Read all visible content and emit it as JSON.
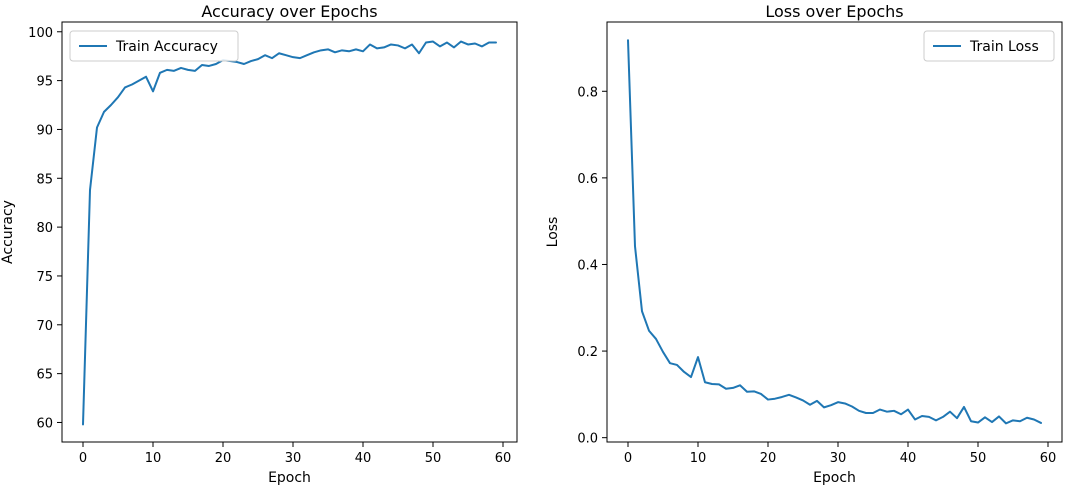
{
  "chart_data": [
    {
      "type": "line",
      "title": "Accuracy over Epochs",
      "xlabel": "Epoch",
      "ylabel": "Accuracy",
      "xlim": [
        -3,
        62
      ],
      "ylim": [
        58.0,
        101.0
      ],
      "xticks": [
        0,
        10,
        20,
        30,
        40,
        50,
        60
      ],
      "yticks": [
        60,
        65,
        70,
        75,
        80,
        85,
        90,
        95,
        100
      ],
      "grid": false,
      "legend_position": "upper-left",
      "series": [
        {
          "name": "Train Accuracy",
          "color": "#1f77b4",
          "x": [
            0,
            1,
            2,
            3,
            4,
            5,
            6,
            7,
            8,
            9,
            10,
            11,
            12,
            13,
            14,
            15,
            16,
            17,
            18,
            19,
            20,
            21,
            22,
            23,
            24,
            25,
            26,
            27,
            28,
            29,
            30,
            31,
            32,
            33,
            34,
            35,
            36,
            37,
            38,
            39,
            40,
            41,
            42,
            43,
            44,
            45,
            46,
            47,
            48,
            49,
            50,
            51,
            52,
            53,
            54,
            55,
            56,
            57,
            58,
            59
          ],
          "y": [
            59.8,
            83.8,
            90.2,
            91.8,
            92.5,
            93.3,
            94.3,
            94.6,
            95.0,
            95.4,
            93.9,
            95.8,
            96.1,
            96.0,
            96.3,
            96.1,
            96.0,
            96.6,
            96.5,
            96.7,
            97.1,
            97.0,
            96.9,
            96.7,
            97.0,
            97.2,
            97.6,
            97.3,
            97.8,
            97.6,
            97.4,
            97.3,
            97.6,
            97.9,
            98.1,
            98.2,
            97.9,
            98.1,
            98.0,
            98.2,
            98.0,
            98.7,
            98.3,
            98.4,
            98.7,
            98.6,
            98.3,
            98.7,
            97.8,
            98.9,
            99.0,
            98.5,
            98.9,
            98.4,
            99.0,
            98.7,
            98.8,
            98.5,
            98.9,
            98.9
          ]
        }
      ]
    },
    {
      "type": "line",
      "title": "Loss over Epochs",
      "xlabel": "Epoch",
      "ylabel": "Loss",
      "xlim": [
        -3,
        62
      ],
      "ylim": [
        -0.01,
        0.96
      ],
      "xticks": [
        0,
        10,
        20,
        30,
        40,
        50,
        60
      ],
      "yticks": [
        0.0,
        0.2,
        0.4,
        0.6,
        0.8
      ],
      "ytick_labels": [
        "0.0",
        "0.2",
        "0.4",
        "0.6",
        "0.8"
      ],
      "grid": false,
      "legend_position": "upper-right",
      "series": [
        {
          "name": "Train Loss",
          "color": "#1f77b4",
          "x": [
            0,
            1,
            2,
            3,
            4,
            5,
            6,
            7,
            8,
            9,
            10,
            11,
            12,
            13,
            14,
            15,
            16,
            17,
            18,
            19,
            20,
            21,
            22,
            23,
            24,
            25,
            26,
            27,
            28,
            29,
            30,
            31,
            32,
            33,
            34,
            35,
            36,
            37,
            38,
            39,
            40,
            41,
            42,
            43,
            44,
            45,
            46,
            47,
            48,
            49,
            50,
            51,
            52,
            53,
            54,
            55,
            56,
            57,
            58,
            59
          ],
          "y": [
            0.918,
            0.442,
            0.292,
            0.247,
            0.228,
            0.198,
            0.172,
            0.168,
            0.152,
            0.14,
            0.186,
            0.128,
            0.124,
            0.123,
            0.113,
            0.115,
            0.121,
            0.106,
            0.107,
            0.101,
            0.088,
            0.09,
            0.094,
            0.099,
            0.093,
            0.086,
            0.076,
            0.085,
            0.07,
            0.075,
            0.082,
            0.079,
            0.072,
            0.062,
            0.057,
            0.057,
            0.065,
            0.06,
            0.062,
            0.054,
            0.065,
            0.042,
            0.05,
            0.048,
            0.04,
            0.048,
            0.06,
            0.045,
            0.071,
            0.038,
            0.035,
            0.047,
            0.036,
            0.049,
            0.033,
            0.04,
            0.038,
            0.046,
            0.042,
            0.034
          ]
        }
      ]
    }
  ]
}
